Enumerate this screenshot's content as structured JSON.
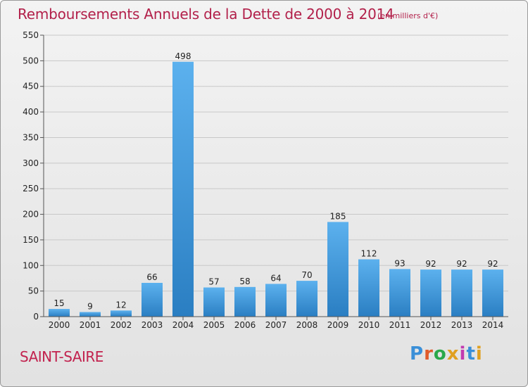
{
  "title": "Remboursements Annuels de la Dette de 2000 à 2014",
  "unit_note": "(en milliers d'€)",
  "commune": "SAINT-SAIRE",
  "logo": {
    "text": "Proxiti",
    "colors": [
      "#3a8fd8",
      "#e05a2a",
      "#2aa84a",
      "#e0a020",
      "#c23ab0",
      "#3a8fd8",
      "#e0a020"
    ]
  },
  "colors": {
    "bar": "#3d9ee6",
    "bar_dark": "#2b7fc3",
    "title": "#b2204a",
    "grid": "#c8c8c8"
  },
  "chart_data": {
    "type": "bar",
    "title": "Remboursements Annuels de la Dette de 2000 à 2014",
    "categories": [
      "2000",
      "2001",
      "2002",
      "2003",
      "2004",
      "2005",
      "2006",
      "2007",
      "2008",
      "2009",
      "2010",
      "2011",
      "2012",
      "2013",
      "2014"
    ],
    "values": [
      15,
      9,
      12,
      66,
      498,
      57,
      58,
      64,
      70,
      185,
      112,
      93,
      92,
      92,
      92
    ],
    "ylim": [
      0,
      550
    ],
    "yticks": [
      0,
      50,
      100,
      150,
      200,
      250,
      300,
      350,
      400,
      450,
      500,
      550
    ],
    "grid": true,
    "data_labels": true
  }
}
